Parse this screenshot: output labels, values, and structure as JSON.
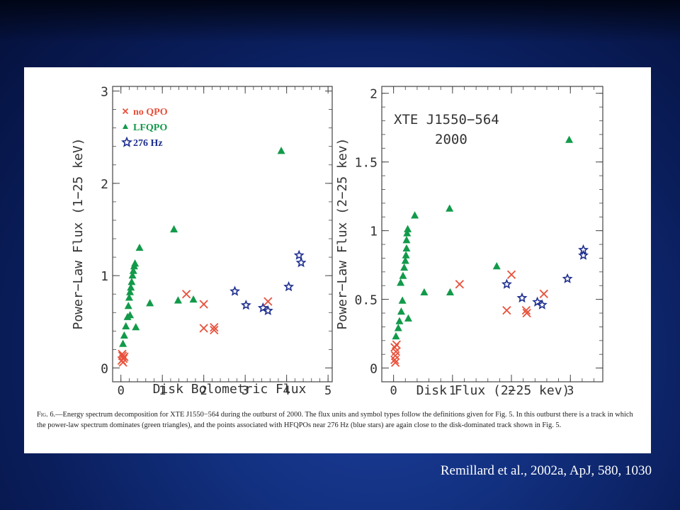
{
  "citation": "Remillard et al., 2002a, ApJ, 580, 1030",
  "caption": {
    "label": "Fig. 6.",
    "text": "—Energy spectrum decomposition for XTE J1550−564 during the outburst of 2000. The flux units and symbol types follow the definitions given for Fig. 5. In this outburst there is a track in which the power-law spectrum dominates (green triangles), and the points associated with HFQPOs near 276 Hz (blue stars) are again close to the disk-dominated track shown in Fig. 5."
  },
  "colors": {
    "no_qpo": "#e8503a",
    "lfqpo": "#129a4a",
    "hz276": "#1f2f8f"
  },
  "chart_data": [
    {
      "type": "scatter",
      "xlabel": "Disk Bolometric Flux",
      "ylabel": "Power−Law Flux (1−25 keV)",
      "xlim": [
        -0.2,
        5.1
      ],
      "ylim": [
        -0.15,
        3.05
      ],
      "xticks": [
        "0",
        "1",
        "2",
        "3",
        "4",
        "5"
      ],
      "yticks": [
        "0",
        "1",
        "2",
        "3"
      ],
      "legend": [
        "no QPO",
        "LFQPO",
        "276 Hz"
      ],
      "legend_position": "top-left",
      "series": [
        {
          "name": "no QPO",
          "marker": "x",
          "points": [
            [
              0.02,
              0.08
            ],
            [
              0.04,
              0.13
            ],
            [
              0.06,
              0.1
            ],
            [
              0.03,
              0.15
            ],
            [
              0.05,
              0.06
            ],
            [
              0.08,
              0.12
            ],
            [
              1.58,
              0.8
            ],
            [
              2.0,
              0.69
            ],
            [
              2.0,
              0.43
            ],
            [
              2.25,
              0.44
            ],
            [
              2.25,
              0.41
            ],
            [
              3.55,
              0.72
            ]
          ]
        },
        {
          "name": "LFQPO",
          "marker": "triangle",
          "points": [
            [
              0.05,
              0.26
            ],
            [
              0.08,
              0.35
            ],
            [
              0.12,
              0.45
            ],
            [
              0.16,
              0.55
            ],
            [
              0.18,
              0.67
            ],
            [
              0.2,
              0.76
            ],
            [
              0.22,
              0.82
            ],
            [
              0.24,
              0.87
            ],
            [
              0.26,
              0.93
            ],
            [
              0.28,
              1.0
            ],
            [
              0.3,
              1.05
            ],
            [
              0.32,
              1.1
            ],
            [
              0.34,
              1.13
            ],
            [
              0.36,
              0.44
            ],
            [
              0.45,
              1.3
            ],
            [
              0.22,
              0.57
            ],
            [
              0.7,
              0.7
            ],
            [
              1.28,
              1.5
            ],
            [
              1.38,
              0.73
            ],
            [
              1.75,
              0.74
            ],
            [
              3.87,
              2.35
            ]
          ]
        },
        {
          "name": "276 Hz",
          "marker": "star",
          "points": [
            [
              2.75,
              0.83
            ],
            [
              3.02,
              0.68
            ],
            [
              3.43,
              0.65
            ],
            [
              3.55,
              0.62
            ],
            [
              4.05,
              0.88
            ],
            [
              4.3,
              1.22
            ],
            [
              4.35,
              1.14
            ]
          ]
        }
      ]
    },
    {
      "type": "scatter",
      "title": "XTE J1550−564",
      "subtitle": "2000",
      "xlabel": "Disk Flux (2−25 kev)",
      "ylabel": "Power−Law Flux (2−25 kev)",
      "xlim": [
        -0.2,
        3.55
      ],
      "ylim": [
        -0.1,
        2.05
      ],
      "xticks": [
        "0",
        "1",
        "2",
        "3"
      ],
      "yticks": [
        "0",
        "0.5",
        "1",
        "1.5",
        "2"
      ],
      "series": [
        {
          "name": "no QPO",
          "marker": "x",
          "points": [
            [
              0.02,
              0.06
            ],
            [
              0.03,
              0.09
            ],
            [
              0.04,
              0.12
            ],
            [
              0.02,
              0.15
            ],
            [
              0.05,
              0.17
            ],
            [
              0.03,
              0.04
            ],
            [
              1.12,
              0.61
            ],
            [
              1.92,
              0.42
            ],
            [
              2.0,
              0.68
            ],
            [
              2.25,
              0.42
            ],
            [
              2.26,
              0.4
            ],
            [
              2.55,
              0.54
            ]
          ]
        },
        {
          "name": "LFQPO",
          "marker": "triangle",
          "points": [
            [
              0.04,
              0.23
            ],
            [
              0.08,
              0.29
            ],
            [
              0.1,
              0.34
            ],
            [
              0.13,
              0.41
            ],
            [
              0.15,
              0.49
            ],
            [
              0.12,
              0.62
            ],
            [
              0.16,
              0.67
            ],
            [
              0.18,
              0.73
            ],
            [
              0.2,
              0.78
            ],
            [
              0.21,
              0.82
            ],
            [
              0.22,
              0.87
            ],
            [
              0.22,
              0.93
            ],
            [
              0.23,
              0.98
            ],
            [
              0.24,
              1.01
            ],
            [
              0.25,
              0.36
            ],
            [
              0.36,
              1.11
            ],
            [
              0.52,
              0.55
            ],
            [
              0.95,
              1.16
            ],
            [
              0.96,
              0.55
            ],
            [
              1.75,
              0.74
            ],
            [
              2.98,
              1.66
            ]
          ]
        },
        {
          "name": "276 Hz",
          "marker": "star",
          "points": [
            [
              1.92,
              0.61
            ],
            [
              2.18,
              0.51
            ],
            [
              2.44,
              0.48
            ],
            [
              2.52,
              0.46
            ],
            [
              2.95,
              0.65
            ],
            [
              3.22,
              0.86
            ],
            [
              3.22,
              0.82
            ]
          ]
        }
      ]
    }
  ]
}
